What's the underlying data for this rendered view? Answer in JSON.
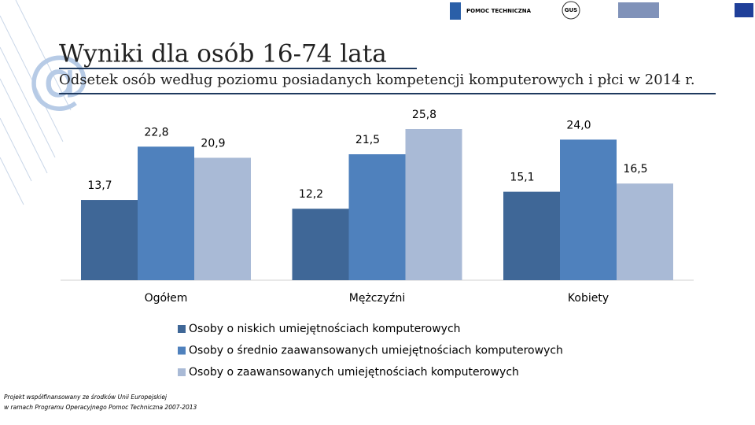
{
  "header": {
    "logo_1": "POMOC TECHNICZNA",
    "logo_2": "GUS"
  },
  "chart_data": {
    "type": "bar",
    "title": "Wyniki dla osób 16-74 lata",
    "subtitle": "Odsetek osób według poziomu posiadanych kompetencji komputerowych i płci w 2014 r.",
    "categories": [
      "Ogółem",
      "Mężczyźni",
      "Kobiety"
    ],
    "series": [
      {
        "name": "Osoby o niskich umiejętnościach komputerowych",
        "color": "#3f6797",
        "values": [
          13.7,
          12.2,
          15.1
        ],
        "value_labels": [
          "13,7",
          "12,2",
          "15,1"
        ]
      },
      {
        "name": "Osoby o średnio zaawansowanych umiejętnościach komputerowych",
        "color": "#4f81bd",
        "values": [
          22.8,
          21.5,
          24.0
        ],
        "value_labels": [
          "22,8",
          "21,5",
          "24,0"
        ]
      },
      {
        "name": "Osoby o zaawansowanych umiejętnościach komputerowych",
        "color": "#a9bad6",
        "values": [
          20.9,
          25.8,
          16.5
        ],
        "value_labels": [
          "20,9",
          "25,8",
          "16,5"
        ]
      }
    ],
    "legend": "bottom"
  },
  "footer": {
    "line_1": "Projekt współfinansowany ze środków Unii Europejskiej",
    "line_2": "w ramach Programu Operacyjnego Pomoc Techniczna 2007-2013"
  }
}
